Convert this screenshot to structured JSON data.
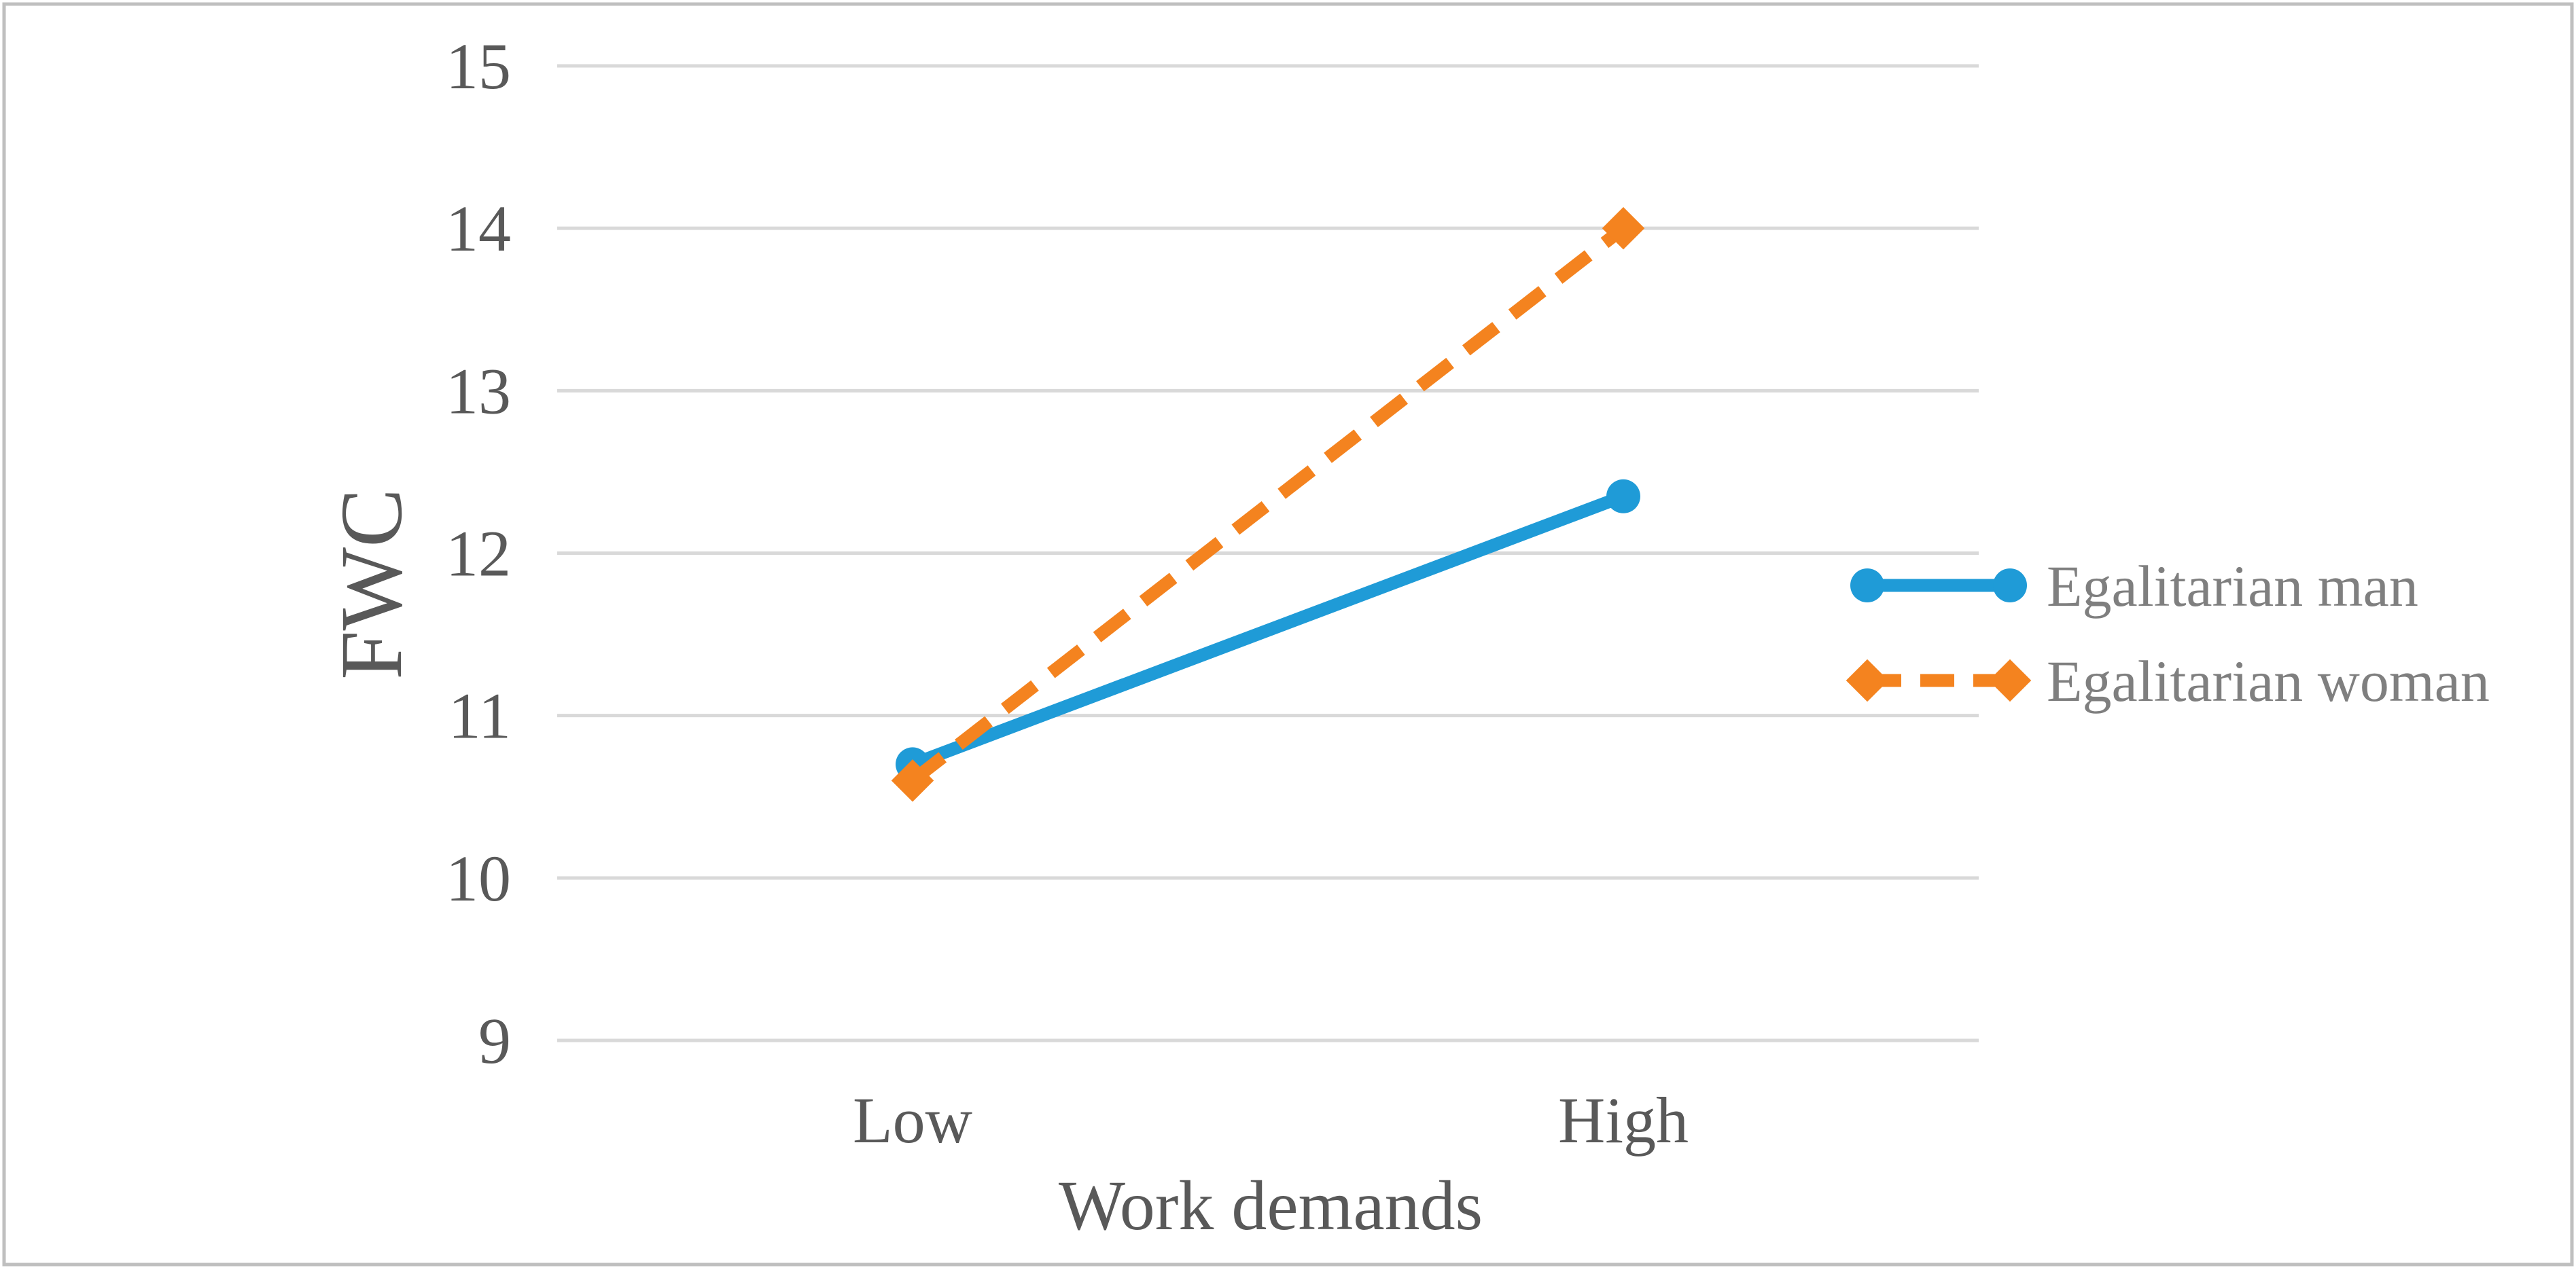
{
  "chart_data": {
    "type": "line",
    "title": "",
    "xlabel": "Work demands",
    "ylabel": "FWC",
    "categories": [
      "Low",
      "High"
    ],
    "ylim": [
      9,
      15
    ],
    "yticks": [
      9,
      10,
      11,
      12,
      13,
      14,
      15
    ],
    "grid": true,
    "legend_position": "right",
    "series": [
      {
        "name": "Egalitarian man",
        "values": [
          10.7,
          12.35
        ],
        "color": "#1f9bd7",
        "line_style": "solid",
        "marker": "circle"
      },
      {
        "name": "Egalitarian woman",
        "values": [
          10.6,
          14.0
        ],
        "color": "#f4831f",
        "line_style": "dashed",
        "marker": "diamond"
      }
    ]
  },
  "colors": {
    "gridline": "#d9d9d9",
    "axis_text": "#595959",
    "legend_text": "#7f7f7f",
    "border": "#bfbfbf"
  }
}
